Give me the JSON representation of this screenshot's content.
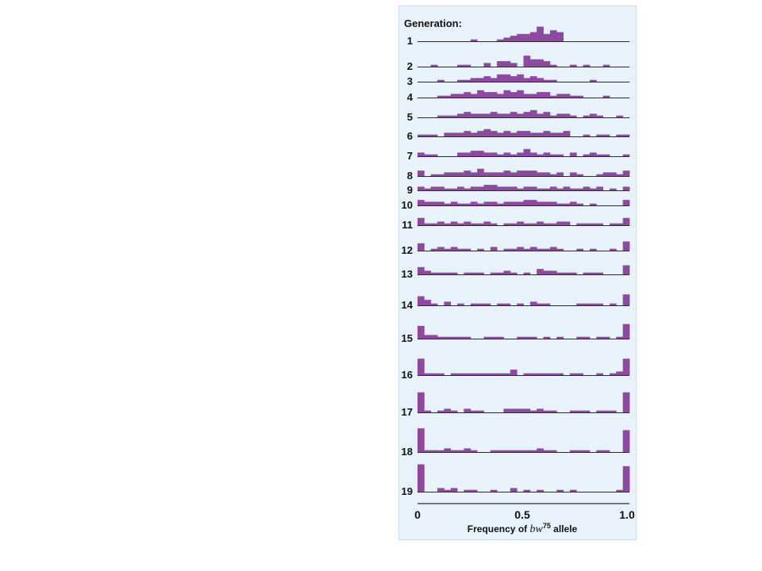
{
  "colors": {
    "bar": "#8e4aa0",
    "baseline": "#2a2a2a",
    "panel": "#e7f2fb"
  },
  "chart_data": {
    "type": "bar",
    "title": "Generation:",
    "xlabel": "Frequency of bw75 allele",
    "xlabel_parts": {
      "prefix": "Frequency of ",
      "italic": "bw",
      "superscript": "75",
      "suffix": " allele"
    },
    "xlim": [
      0,
      1.0
    ],
    "xticks": [
      "0",
      "0.5",
      "1.0"
    ],
    "bins": 32,
    "bin_width": 0.03125,
    "value_unit": "populations",
    "series": [
      {
        "generation": "1",
        "values": [
          0,
          0,
          0,
          0,
          0,
          0,
          0,
          0,
          1,
          0,
          0,
          0,
          1,
          2,
          3,
          4,
          4,
          5,
          8,
          4,
          6,
          5,
          0,
          0,
          0,
          0,
          0,
          0,
          0,
          0,
          0,
          0
        ]
      },
      {
        "generation": "2",
        "values": [
          0,
          0,
          1,
          0,
          0,
          0,
          1,
          1,
          0,
          0,
          2,
          0,
          3,
          3,
          2,
          0,
          6,
          4,
          4,
          3,
          1,
          0,
          0,
          1,
          0,
          1,
          0,
          0,
          1,
          0,
          0,
          0
        ]
      },
      {
        "generation": "3",
        "values": [
          0,
          0,
          0,
          1,
          0,
          0,
          1,
          1,
          2,
          2,
          3,
          2,
          4,
          4,
          3,
          4,
          2,
          3,
          2,
          1,
          1,
          0,
          0,
          0,
          0,
          0,
          1,
          0,
          0,
          0,
          0,
          0
        ]
      },
      {
        "generation": "4",
        "values": [
          0,
          0,
          0,
          1,
          1,
          2,
          2,
          3,
          2,
          4,
          3,
          3,
          2,
          4,
          3,
          4,
          2,
          2,
          3,
          3,
          1,
          2,
          2,
          1,
          1,
          0,
          0,
          0,
          1,
          0,
          0,
          0
        ]
      },
      {
        "generation": "5",
        "values": [
          0,
          0,
          0,
          1,
          1,
          1,
          2,
          3,
          2,
          2,
          2,
          3,
          2,
          2,
          3,
          2,
          3,
          4,
          2,
          3,
          1,
          2,
          2,
          1,
          0,
          1,
          2,
          1,
          0,
          0,
          1,
          0
        ]
      },
      {
        "generation": "6",
        "values": [
          1,
          1,
          1,
          0,
          2,
          2,
          2,
          3,
          2,
          3,
          4,
          3,
          2,
          3,
          2,
          3,
          3,
          2,
          2,
          3,
          2,
          2,
          3,
          0,
          0,
          1,
          0,
          1,
          1,
          0,
          1,
          1
        ]
      },
      {
        "generation": "7",
        "values": [
          2,
          1,
          1,
          0,
          0,
          0,
          2,
          2,
          3,
          3,
          2,
          2,
          1,
          2,
          1,
          2,
          4,
          2,
          1,
          2,
          1,
          1,
          0,
          2,
          0,
          1,
          2,
          1,
          1,
          0,
          0,
          1
        ]
      },
      {
        "generation": "8",
        "values": [
          3,
          0,
          1,
          1,
          2,
          2,
          2,
          3,
          2,
          4,
          2,
          2,
          2,
          3,
          2,
          3,
          3,
          3,
          2,
          2,
          1,
          2,
          0,
          2,
          1,
          0,
          0,
          1,
          2,
          2,
          1,
          3
        ]
      },
      {
        "generation": "9",
        "values": [
          2,
          1,
          2,
          2,
          1,
          1,
          2,
          1,
          2,
          2,
          3,
          3,
          2,
          2,
          2,
          1,
          2,
          2,
          1,
          1,
          2,
          1,
          2,
          1,
          1,
          2,
          1,
          2,
          0,
          1,
          0,
          2
        ]
      },
      {
        "generation": "10",
        "values": [
          3,
          2,
          2,
          2,
          1,
          2,
          1,
          1,
          2,
          1,
          2,
          2,
          1,
          2,
          2,
          2,
          3,
          3,
          2,
          2,
          2,
          1,
          1,
          2,
          1,
          0,
          1,
          0,
          0,
          0,
          0,
          3
        ]
      },
      {
        "generation": "11",
        "values": [
          4,
          1,
          1,
          2,
          1,
          2,
          1,
          2,
          1,
          1,
          2,
          1,
          0,
          1,
          1,
          2,
          1,
          1,
          2,
          1,
          1,
          2,
          2,
          0,
          1,
          1,
          1,
          1,
          0,
          1,
          1,
          4
        ]
      },
      {
        "generation": "12",
        "values": [
          4,
          0,
          1,
          2,
          1,
          2,
          1,
          1,
          0,
          1,
          0,
          2,
          0,
          1,
          1,
          2,
          1,
          2,
          1,
          1,
          2,
          1,
          0,
          0,
          1,
          0,
          1,
          0,
          0,
          1,
          0,
          5
        ]
      },
      {
        "generation": "13",
        "values": [
          4,
          2,
          1,
          1,
          1,
          1,
          0,
          1,
          1,
          1,
          0,
          1,
          1,
          2,
          1,
          0,
          1,
          0,
          3,
          2,
          2,
          1,
          1,
          1,
          0,
          1,
          1,
          1,
          0,
          0,
          0,
          5
        ]
      },
      {
        "generation": "14",
        "values": [
          5,
          3,
          1,
          0,
          2,
          0,
          1,
          0,
          1,
          1,
          1,
          0,
          1,
          1,
          0,
          1,
          0,
          2,
          1,
          1,
          0,
          0,
          0,
          0,
          1,
          1,
          1,
          1,
          0,
          1,
          0,
          6
        ]
      },
      {
        "generation": "15",
        "values": [
          7,
          2,
          2,
          1,
          1,
          1,
          1,
          1,
          0,
          0,
          1,
          1,
          1,
          0,
          0,
          1,
          1,
          1,
          0,
          1,
          0,
          1,
          0,
          0,
          1,
          1,
          0,
          1,
          1,
          0,
          1,
          8
        ]
      },
      {
        "generation": "16",
        "values": [
          9,
          1,
          1,
          1,
          0,
          1,
          1,
          1,
          1,
          1,
          1,
          1,
          1,
          1,
          3,
          0,
          1,
          1,
          1,
          1,
          1,
          1,
          0,
          1,
          1,
          0,
          0,
          1,
          0,
          1,
          2,
          9
        ]
      },
      {
        "generation": "17",
        "values": [
          11,
          1,
          0,
          1,
          2,
          1,
          0,
          2,
          1,
          1,
          0,
          0,
          0,
          2,
          2,
          2,
          2,
          1,
          2,
          1,
          1,
          0,
          0,
          1,
          1,
          1,
          0,
          1,
          1,
          1,
          0,
          11
        ]
      },
      {
        "generation": "18",
        "values": [
          13,
          1,
          1,
          1,
          2,
          1,
          1,
          2,
          1,
          0,
          0,
          1,
          1,
          1,
          1,
          1,
          1,
          1,
          2,
          1,
          1,
          0,
          0,
          1,
          1,
          1,
          0,
          1,
          1,
          0,
          0,
          12
        ]
      },
      {
        "generation": "19",
        "values": [
          15,
          0,
          0,
          2,
          1,
          2,
          0,
          1,
          1,
          0,
          0,
          1,
          0,
          0,
          2,
          0,
          1,
          0,
          1,
          0,
          0,
          1,
          0,
          1,
          0,
          0,
          0,
          0,
          0,
          0,
          1,
          14
        ]
      }
    ]
  }
}
